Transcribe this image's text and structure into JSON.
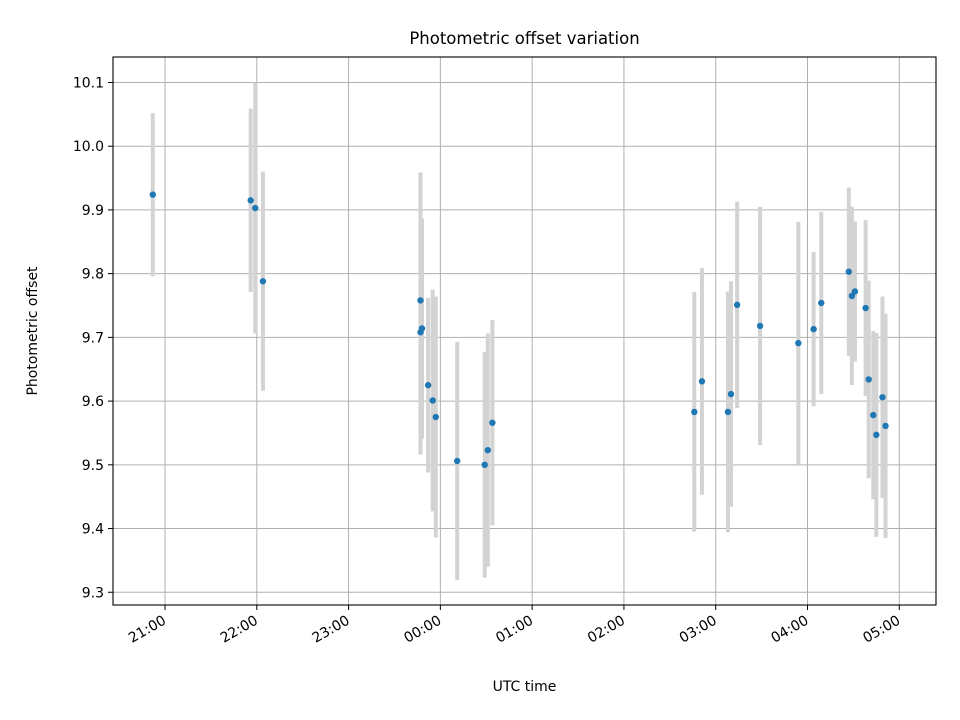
{
  "chart_data": {
    "type": "scatter",
    "title": "Photometric offset variation",
    "xlabel": "UTC time",
    "ylabel": "Photometric offset",
    "grid": true,
    "legend": "none",
    "x_axis_kind": "time",
    "x_ticks": [
      "21:00",
      "22:00",
      "23:00",
      "00:00",
      "01:00",
      "02:00",
      "03:00",
      "04:00",
      "05:00"
    ],
    "xlim": [
      "20:26",
      "05:24"
    ],
    "y_ticks": [
      9.3,
      9.4,
      9.5,
      9.6,
      9.7,
      9.8,
      9.9,
      10.0,
      10.1
    ],
    "ylim": [
      9.28,
      10.14
    ],
    "colors": {
      "points": "#1f77b4",
      "errorbars": "#d3d3d3",
      "grid": "#b0b0b0"
    },
    "series": [
      {
        "points": [
          {
            "x": "20:52",
            "y": 9.924,
            "err": 0.128
          },
          {
            "x": "21:56",
            "y": 9.915,
            "err": 0.144
          },
          {
            "x": "21:59",
            "y": 9.903,
            "err": 0.197
          },
          {
            "x": "22:04",
            "y": 9.788,
            "err": 0.172
          },
          {
            "x": "23:47",
            "y": 9.758,
            "err": 0.201
          },
          {
            "x": "23:48",
            "y": 9.714,
            "err": 0.173
          },
          {
            "x": "23:47",
            "y": 9.708,
            "err": 0.192
          },
          {
            "x": "23:52",
            "y": 9.625,
            "err": 0.137
          },
          {
            "x": "23:55",
            "y": 9.601,
            "err": 0.174
          },
          {
            "x": "23:57",
            "y": 9.575,
            "err": 0.189
          },
          {
            "x": "00:11",
            "y": 9.506,
            "err": 0.187
          },
          {
            "x": "00:29",
            "y": 9.5,
            "err": 0.177
          },
          {
            "x": "00:31",
            "y": 9.523,
            "err": 0.183
          },
          {
            "x": "00:34",
            "y": 9.566,
            "err": 0.161
          },
          {
            "x": "02:46",
            "y": 9.583,
            "err": 0.188
          },
          {
            "x": "02:51",
            "y": 9.631,
            "err": 0.178
          },
          {
            "x": "03:08",
            "y": 9.583,
            "err": 0.189
          },
          {
            "x": "03:10",
            "y": 9.611,
            "err": 0.177
          },
          {
            "x": "03:14",
            "y": 9.751,
            "err": 0.162
          },
          {
            "x": "03:29",
            "y": 9.718,
            "err": 0.187
          },
          {
            "x": "03:54",
            "y": 9.691,
            "err": 0.19
          },
          {
            "x": "04:04",
            "y": 9.713,
            "err": 0.121
          },
          {
            "x": "04:09",
            "y": 9.754,
            "err": 0.143
          },
          {
            "x": "04:27",
            "y": 9.803,
            "err": 0.132
          },
          {
            "x": "04:29",
            "y": 9.765,
            "err": 0.14
          },
          {
            "x": "04:31",
            "y": 9.772,
            "err": 0.11
          },
          {
            "x": "04:38",
            "y": 9.746,
            "err": 0.138
          },
          {
            "x": "04:40",
            "y": 9.634,
            "err": 0.155
          },
          {
            "x": "04:43",
            "y": 9.578,
            "err": 0.132
          },
          {
            "x": "04:45",
            "y": 9.547,
            "err": 0.16
          },
          {
            "x": "04:49",
            "y": 9.606,
            "err": 0.158
          },
          {
            "x": "04:51",
            "y": 9.561,
            "err": 0.176
          }
        ]
      }
    ]
  }
}
